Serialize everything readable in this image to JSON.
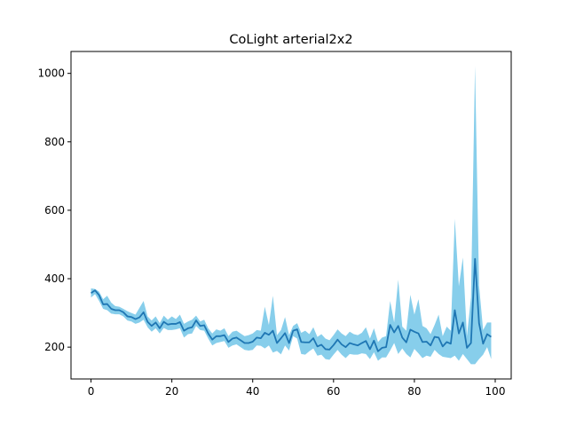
{
  "chart_data": {
    "type": "line",
    "title": "CoLight arterial2x2",
    "xlabel": "",
    "ylabel": "",
    "xlim": [
      -4.95,
      103.95
    ],
    "ylim": [
      107,
      1064
    ],
    "xticks": [
      0,
      20,
      40,
      60,
      80,
      100
    ],
    "yticks": [
      200,
      400,
      600,
      800,
      1000
    ],
    "grid": false,
    "colors": {
      "line": "#1f77b4",
      "band": "#87ceeb"
    },
    "series": [
      {
        "x": [
          0,
          1,
          2,
          3,
          4,
          5,
          6,
          7,
          8,
          9,
          10,
          11,
          12,
          13,
          14,
          15,
          16,
          17,
          18,
          19,
          20,
          21,
          22,
          23,
          24,
          25,
          26,
          27,
          28,
          29,
          30,
          31,
          32,
          33,
          34,
          35,
          36,
          37,
          38,
          39,
          40,
          41,
          42,
          43,
          44,
          45,
          46,
          47,
          48,
          49,
          50,
          51,
          52,
          53,
          54,
          55,
          56,
          57,
          58,
          59,
          60,
          61,
          62,
          63,
          64,
          65,
          66,
          67,
          68,
          69,
          70,
          71,
          72,
          73,
          74,
          75,
          76,
          77,
          78,
          79,
          80,
          81,
          82,
          83,
          84,
          85,
          86,
          87,
          88,
          89,
          90,
          91,
          92,
          93,
          94,
          95,
          96,
          97,
          98,
          99
        ],
        "mean": [
          358,
          366,
          352,
          325,
          326,
          312,
          308,
          308,
          302,
          290,
          288,
          282,
          287,
          302,
          274,
          262,
          272,
          255,
          274,
          266,
          268,
          268,
          273,
          248,
          255,
          258,
          278,
          262,
          264,
          240,
          222,
          232,
          232,
          235,
          215,
          225,
          228,
          220,
          212,
          212,
          216,
          228,
          226,
          242,
          236,
          248,
          212,
          226,
          241,
          212,
          248,
          252,
          215,
          214,
          214,
          226,
          202,
          207,
          194,
          193,
          206,
          222,
          208,
          200,
          212,
          208,
          205,
          212,
          218,
          194,
          219,
          188,
          198,
          200,
          265,
          243,
          262,
          228,
          214,
          251,
          245,
          240,
          215,
          216,
          205,
          230,
          228,
          202,
          215,
          210,
          308,
          240,
          272,
          198,
          212,
          458,
          270,
          210,
          238,
          230
        ],
        "upper": [
          372,
          370,
          362,
          340,
          350,
          330,
          320,
          318,
          312,
          305,
          300,
          295,
          315,
          335,
          290,
          278,
          290,
          270,
          292,
          280,
          290,
          282,
          295,
          268,
          275,
          280,
          292,
          275,
          280,
          255,
          240,
          252,
          248,
          255,
          232,
          245,
          248,
          240,
          232,
          235,
          240,
          250,
          248,
          318,
          265,
          350,
          235,
          250,
          288,
          235,
          262,
          270,
          242,
          248,
          238,
          258,
          230,
          238,
          225,
          220,
          235,
          252,
          240,
          232,
          245,
          238,
          235,
          242,
          258,
          225,
          255,
          215,
          228,
          232,
          335,
          272,
          397,
          260,
          248,
          353,
          295,
          340,
          262,
          255,
          238,
          265,
          295,
          232,
          260,
          248,
          575,
          378,
          462,
          232,
          345,
          1022,
          380,
          250,
          272,
          272
        ],
        "lower": [
          345,
          355,
          335,
          312,
          308,
          298,
          296,
          296,
          290,
          278,
          275,
          268,
          272,
          280,
          258,
          245,
          255,
          240,
          256,
          250,
          250,
          252,
          255,
          228,
          238,
          240,
          262,
          250,
          248,
          225,
          205,
          212,
          215,
          218,
          198,
          205,
          208,
          200,
          192,
          190,
          192,
          205,
          204,
          196,
          205,
          184,
          189,
          179,
          205,
          190,
          232,
          225,
          180,
          178,
          188,
          196,
          175,
          178,
          165,
          163,
          178,
          192,
          178,
          168,
          180,
          178,
          178,
          182,
          180,
          165,
          185,
          160,
          170,
          170,
          190,
          212,
          180,
          196,
          180,
          170,
          195,
          182,
          168,
          175,
          172,
          192,
          180,
          172,
          170,
          168,
          175,
          160,
          180,
          165,
          150,
          150,
          165,
          178,
          200,
          165
        ]
      }
    ]
  }
}
